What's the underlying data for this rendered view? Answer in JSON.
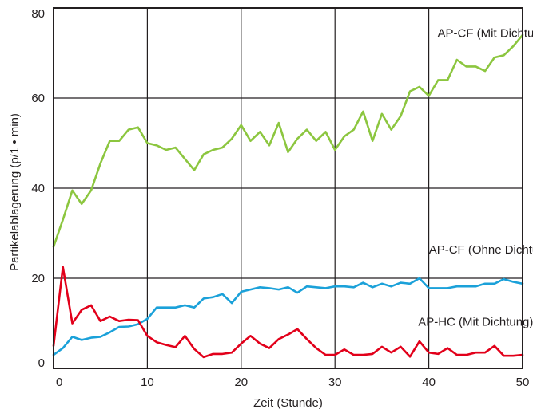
{
  "chart_data": {
    "type": "line",
    "title": "",
    "xlabel": "Zeit (Stunde)",
    "ylabel": "Partikelablagerung (p/1 • min)",
    "xlim": [
      0,
      50
    ],
    "ylim": [
      0,
      80
    ],
    "xticks": [
      "0",
      "10",
      "20",
      "30",
      "40",
      "50"
    ],
    "yticks": [
      "0",
      "20",
      "40",
      "60",
      "80"
    ],
    "grid": true,
    "series": [
      {
        "name": "AP-CF (Mit Dichtung)",
        "color": "#8cc63f",
        "x": [
          0,
          1,
          2,
          3,
          4,
          5,
          6,
          7,
          8,
          9,
          10,
          11,
          12,
          13,
          14,
          15,
          16,
          17,
          18,
          19,
          20,
          21,
          22,
          23,
          24,
          25,
          26,
          27,
          28,
          29,
          30,
          31,
          32,
          33,
          34,
          35,
          36,
          37,
          38,
          39,
          40,
          41,
          42,
          43,
          44,
          45,
          46,
          47,
          48,
          49,
          50
        ],
        "y": [
          27,
          33,
          39.5,
          36.5,
          39.5,
          45.5,
          50.5,
          50.5,
          53,
          53.5,
          50,
          49.5,
          48.5,
          49,
          46.5,
          44,
          47.5,
          48.5,
          49,
          51,
          54,
          50.5,
          52.5,
          49.5,
          54.5,
          48,
          51,
          53,
          50.5,
          52.5,
          48.5,
          51.5,
          53,
          57,
          50.5,
          56.5,
          53,
          56,
          61.5,
          62.5,
          60.5,
          64,
          64,
          68.5,
          67,
          67,
          66,
          69,
          69.5,
          71.5,
          74
        ]
      },
      {
        "name": "AP-CF (Ohne Dichtungen)",
        "color": "#1ba1d9",
        "x": [
          0,
          1,
          2,
          3,
          4,
          5,
          6,
          7,
          8,
          9,
          10,
          11,
          12,
          13,
          14,
          15,
          16,
          17,
          18,
          19,
          20,
          21,
          22,
          23,
          24,
          25,
          26,
          27,
          28,
          29,
          30,
          31,
          32,
          33,
          34,
          35,
          36,
          37,
          38,
          39,
          40,
          41,
          42,
          43,
          44,
          45,
          46,
          47,
          48,
          49,
          50
        ],
        "y": [
          3,
          4.5,
          7,
          6.3,
          6.8,
          7,
          8,
          9.2,
          9.3,
          9.8,
          11,
          13.5,
          13.5,
          13.5,
          14,
          13.5,
          15.5,
          15.8,
          16.5,
          14.5,
          17,
          17.5,
          18,
          17.8,
          17.5,
          18,
          16.8,
          18.2,
          18,
          17.8,
          18.2,
          18.2,
          18,
          19,
          18,
          18.8,
          18.2,
          19,
          18.8,
          20,
          17.8,
          17.8,
          17.8,
          18.2,
          18.2,
          18.2,
          18.8,
          18.8,
          19.8,
          19.2,
          18.8
        ]
      },
      {
        "name": "AP-HC (Mit Dichtung)",
        "color": "#e2001a",
        "x": [
          0,
          1,
          2,
          3,
          4,
          5,
          6,
          7,
          8,
          9,
          10,
          11,
          12,
          13,
          14,
          15,
          16,
          17,
          18,
          19,
          20,
          21,
          22,
          23,
          24,
          25,
          26,
          27,
          28,
          29,
          30,
          31,
          32,
          33,
          34,
          35,
          36,
          37,
          38,
          39,
          40,
          41,
          42,
          43,
          44,
          45,
          46,
          47,
          48,
          49,
          50
        ],
        "y": [
          5,
          22.5,
          10,
          13,
          14,
          10.5,
          11.5,
          10.5,
          10.8,
          10.7,
          7.2,
          5.8,
          5.2,
          4.7,
          7.2,
          4.3,
          2.5,
          3.2,
          3.2,
          3.5,
          5.5,
          7.2,
          5.5,
          4.5,
          6.5,
          7.5,
          8.7,
          6.5,
          4.5,
          3,
          3,
          4.2,
          3,
          3,
          3.2,
          4.8,
          3.5,
          4.8,
          2.6,
          6,
          3.5,
          3.2,
          4.5,
          3,
          3,
          3.5,
          3.5,
          5,
          2.8,
          2.8,
          3
        ]
      }
    ],
    "annotations": [
      {
        "text": "AP-CF (Mit Dichtung)",
        "series": 0
      },
      {
        "text": "AP-CF (Ohne Dichtungen)",
        "series": 1
      },
      {
        "text": "AP-HC (Mit Dichtung)",
        "series": 2
      }
    ],
    "gridColor": "#231f20",
    "axisColor": "#231f20"
  }
}
